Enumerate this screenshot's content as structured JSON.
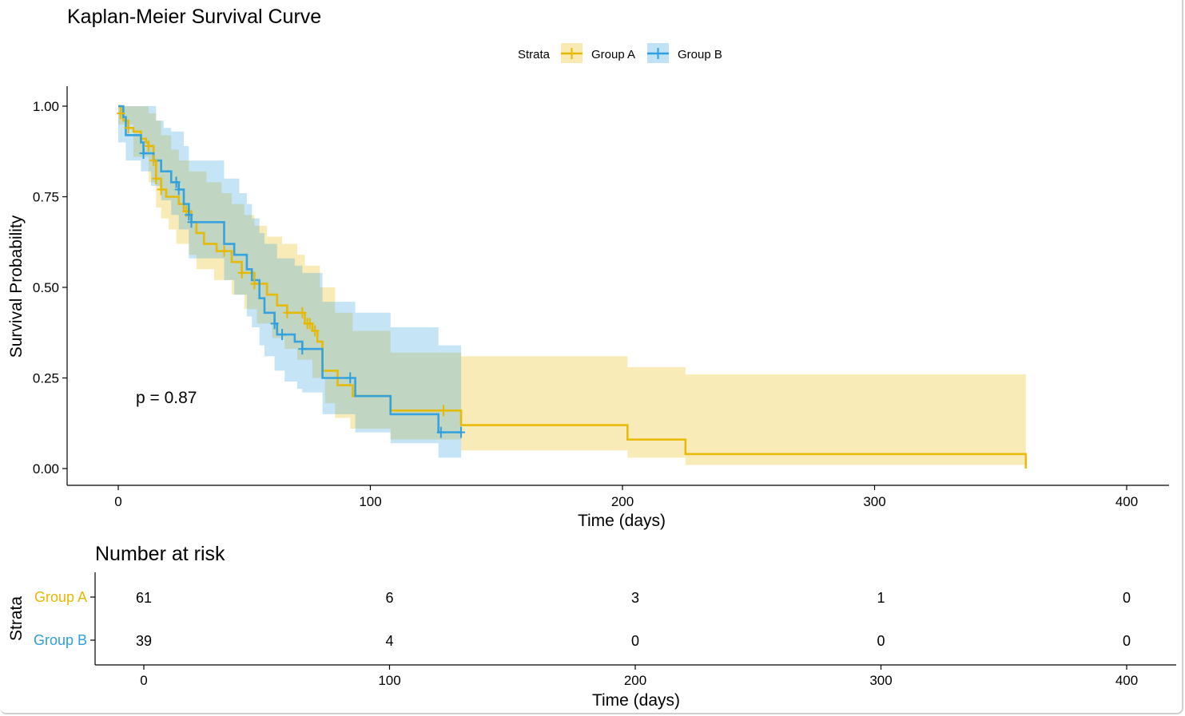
{
  "colors": {
    "group_a": "#E7B800",
    "group_b": "#2E9FDF",
    "axis": "#000000"
  },
  "chart_data": {
    "type": "line",
    "subtype": "kaplan-meier-step",
    "title": "Kaplan-Meier Survival Curve",
    "xlabel": "Time (days)",
    "ylabel": "Survival Probability",
    "xlim": [
      -20,
      420
    ],
    "ylim": [
      -0.05,
      1.05
    ],
    "x_ticks": [
      0,
      100,
      200,
      300,
      400
    ],
    "y_ticks": [
      0,
      0.25,
      0.5,
      0.75,
      1.0
    ],
    "x_tick_labels": [
      "0",
      "100",
      "200",
      "300",
      "400"
    ],
    "y_tick_labels": [
      "0.00",
      "0.25",
      "0.50",
      "0.75",
      "1.00"
    ],
    "grid": false,
    "legend": {
      "title": "Strata",
      "position": "top",
      "entries": [
        "Group A",
        "Group B"
      ]
    },
    "annotation": "p = 0.87",
    "series": [
      {
        "name": "Group A",
        "color": "#E7B800",
        "steps": [
          [
            0,
            1.0
          ],
          [
            1,
            0.98
          ],
          [
            2,
            0.96
          ],
          [
            4,
            0.94
          ],
          [
            6,
            0.93
          ],
          [
            9,
            0.91
          ],
          [
            11,
            0.9
          ],
          [
            12,
            0.89
          ],
          [
            14,
            0.85
          ],
          [
            15,
            0.8
          ],
          [
            17,
            0.77
          ],
          [
            19,
            0.75
          ],
          [
            24,
            0.73
          ],
          [
            26,
            0.71
          ],
          [
            29,
            0.68
          ],
          [
            31,
            0.65
          ],
          [
            34,
            0.62
          ],
          [
            39,
            0.6
          ],
          [
            45,
            0.57
          ],
          [
            49,
            0.54
          ],
          [
            54,
            0.51
          ],
          [
            59,
            0.48
          ],
          [
            63,
            0.45
          ],
          [
            67,
            0.43
          ],
          [
            74,
            0.4
          ],
          [
            77,
            0.38
          ],
          [
            79,
            0.35
          ],
          [
            81,
            0.27
          ],
          [
            87,
            0.23
          ],
          [
            93,
            0.2
          ],
          [
            108,
            0.16
          ],
          [
            136,
            0.12
          ],
          [
            202,
            0.08
          ],
          [
            225,
            0.04
          ],
          [
            360,
            0.0
          ]
        ],
        "end_x": 360,
        "censor_times": [
          1,
          4,
          12,
          14,
          15,
          17,
          27,
          42,
          49,
          54,
          67,
          73,
          75,
          76,
          78,
          129
        ],
        "ci_lower": [
          [
            0,
            0.95
          ],
          [
            6,
            0.86
          ],
          [
            12,
            0.79
          ],
          [
            15,
            0.72
          ],
          [
            17,
            0.69
          ],
          [
            20,
            0.66
          ],
          [
            23,
            0.62
          ],
          [
            28,
            0.59
          ],
          [
            31,
            0.55
          ],
          [
            38,
            0.52
          ],
          [
            45,
            0.48
          ],
          [
            50,
            0.44
          ],
          [
            55,
            0.4
          ],
          [
            61,
            0.36
          ],
          [
            66,
            0.33
          ],
          [
            71,
            0.3
          ],
          [
            77,
            0.25
          ],
          [
            82,
            0.18
          ],
          [
            86,
            0.14
          ],
          [
            92,
            0.11
          ],
          [
            108,
            0.08
          ],
          [
            136,
            0.05
          ],
          [
            202,
            0.03
          ],
          [
            225,
            0.01
          ]
        ],
        "ci_upper": [
          [
            0,
            1.0
          ],
          [
            6,
            1.0
          ],
          [
            12,
            0.98
          ],
          [
            15,
            0.96
          ],
          [
            17,
            0.92
          ],
          [
            21,
            0.88
          ],
          [
            24,
            0.85
          ],
          [
            28,
            0.82
          ],
          [
            35,
            0.79
          ],
          [
            41,
            0.76
          ],
          [
            45,
            0.73
          ],
          [
            50,
            0.7
          ],
          [
            54,
            0.67
          ],
          [
            59,
            0.64
          ],
          [
            65,
            0.62
          ],
          [
            71,
            0.59
          ],
          [
            74,
            0.56
          ],
          [
            80,
            0.5
          ],
          [
            86,
            0.43
          ],
          [
            93,
            0.38
          ],
          [
            108,
            0.32
          ],
          [
            136,
            0.31
          ],
          [
            202,
            0.28
          ],
          [
            225,
            0.26
          ]
        ]
      },
      {
        "name": "Group B",
        "color": "#2E9FDF",
        "steps": [
          [
            0,
            1.0
          ],
          [
            2,
            0.97
          ],
          [
            3,
            0.92
          ],
          [
            9,
            0.9
          ],
          [
            10,
            0.87
          ],
          [
            14,
            0.85
          ],
          [
            17,
            0.82
          ],
          [
            21,
            0.79
          ],
          [
            24,
            0.77
          ],
          [
            26,
            0.73
          ],
          [
            28,
            0.7
          ],
          [
            29,
            0.68
          ],
          [
            42,
            0.62
          ],
          [
            46,
            0.59
          ],
          [
            51,
            0.55
          ],
          [
            53,
            0.52
          ],
          [
            56,
            0.47
          ],
          [
            58,
            0.43
          ],
          [
            62,
            0.4
          ],
          [
            63,
            0.37
          ],
          [
            70,
            0.35
          ],
          [
            73,
            0.33
          ],
          [
            81,
            0.25
          ],
          [
            94,
            0.2
          ],
          [
            108,
            0.15
          ],
          [
            127,
            0.1
          ]
        ],
        "end_x": 136,
        "censor_times": [
          10,
          23,
          24,
          28,
          29,
          62,
          65,
          73,
          92,
          128,
          136
        ],
        "ci_lower": [
          [
            0,
            0.9
          ],
          [
            3,
            0.85
          ],
          [
            9,
            0.82
          ],
          [
            13,
            0.78
          ],
          [
            17,
            0.74
          ],
          [
            21,
            0.7
          ],
          [
            24,
            0.66
          ],
          [
            28,
            0.58
          ],
          [
            42,
            0.52
          ],
          [
            46,
            0.48
          ],
          [
            51,
            0.42
          ],
          [
            53,
            0.39
          ],
          [
            56,
            0.34
          ],
          [
            58,
            0.31
          ],
          [
            62,
            0.27
          ],
          [
            66,
            0.24
          ],
          [
            71,
            0.22
          ],
          [
            73,
            0.21
          ],
          [
            81,
            0.15
          ],
          [
            94,
            0.1
          ],
          [
            108,
            0.07
          ],
          [
            127,
            0.03
          ]
        ],
        "ci_upper": [
          [
            0,
            1.0
          ],
          [
            15,
            0.96
          ],
          [
            18,
            0.94
          ],
          [
            21,
            0.93
          ],
          [
            26,
            0.89
          ],
          [
            28,
            0.85
          ],
          [
            42,
            0.8
          ],
          [
            48,
            0.76
          ],
          [
            51,
            0.73
          ],
          [
            53,
            0.69
          ],
          [
            56,
            0.65
          ],
          [
            58,
            0.62
          ],
          [
            63,
            0.58
          ],
          [
            70,
            0.56
          ],
          [
            73,
            0.54
          ],
          [
            81,
            0.46
          ],
          [
            94,
            0.43
          ],
          [
            108,
            0.39
          ],
          [
            127,
            0.34
          ]
        ]
      }
    ]
  },
  "risk_table": {
    "title": "Number at risk",
    "strata_label": "Strata",
    "xlabel": "Time (days)",
    "times": [
      0,
      100,
      200,
      300,
      400
    ],
    "time_labels": [
      "0",
      "100",
      "200",
      "300",
      "400"
    ],
    "rows": [
      {
        "name": "Group A",
        "counts": [
          "61",
          "6",
          "3",
          "1",
          "0"
        ]
      },
      {
        "name": "Group B",
        "counts": [
          "39",
          "4",
          "0",
          "0",
          "0"
        ]
      }
    ]
  }
}
